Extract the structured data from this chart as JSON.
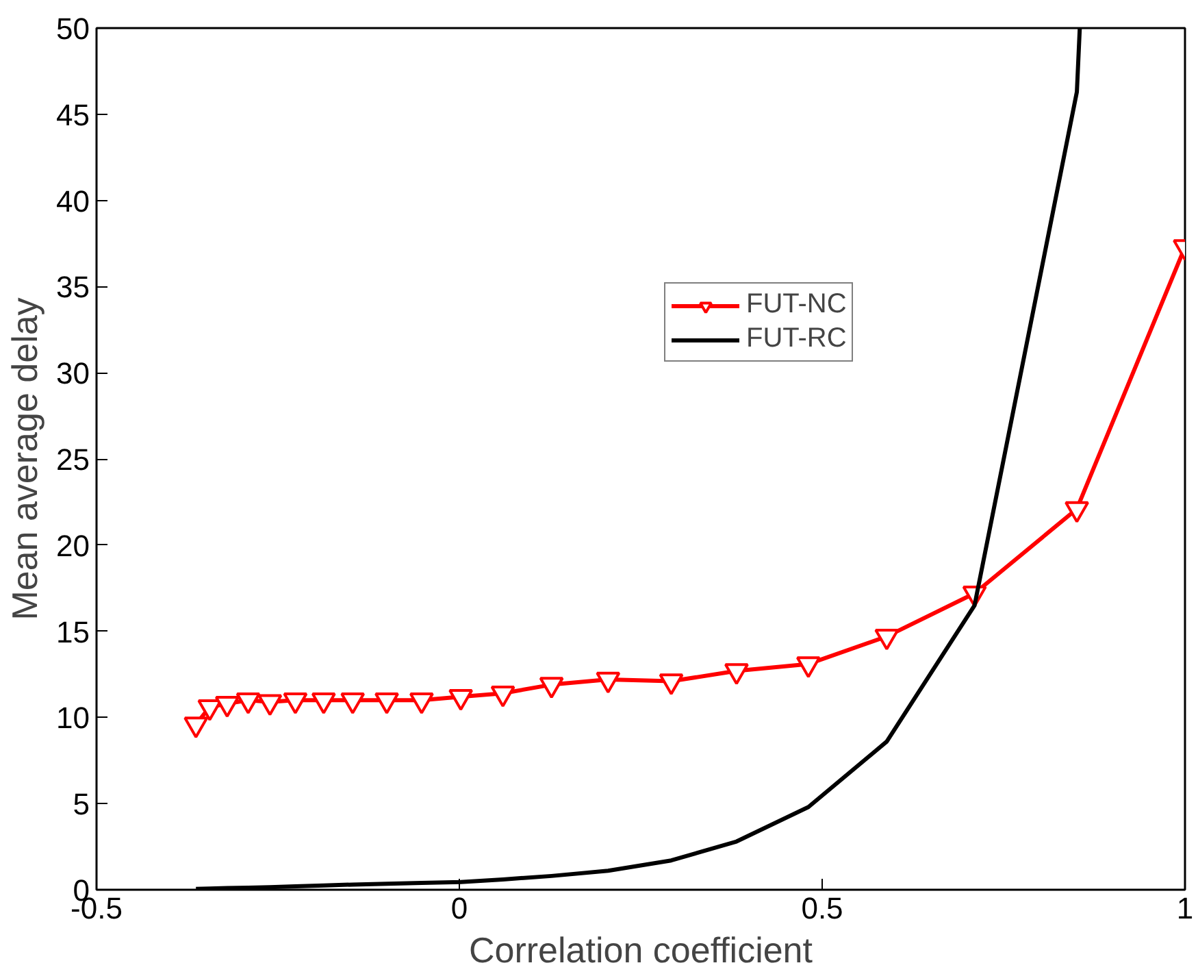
{
  "chart_data": {
    "type": "line",
    "xlabel": "Correlation coefficient",
    "ylabel": "Mean average delay",
    "xlim": [
      -0.5,
      1
    ],
    "ylim": [
      0,
      50
    ],
    "xticks": [
      -0.5,
      0,
      0.5,
      1
    ],
    "yticks": [
      0,
      5,
      10,
      15,
      20,
      25,
      30,
      35,
      40,
      45,
      50
    ],
    "grid": false,
    "legend": "top right",
    "line_style": "solid",
    "series": [
      {
        "name": "FUT-NC",
        "color": "#ff0000",
        "marker": "triangle",
        "x": [
          -0.363,
          -0.344,
          -0.32,
          -0.291,
          -0.261,
          -0.226,
          -0.187,
          -0.147,
          -0.1,
          -0.052,
          0.002,
          0.06,
          0.127,
          0.205,
          0.292,
          0.382,
          0.481,
          0.589,
          0.71,
          0.851,
          1.0
        ],
        "values": [
          9.6,
          10.6,
          10.8,
          11,
          10.9,
          11,
          11,
          11,
          11,
          11,
          11.2,
          11.4,
          11.9,
          12.2,
          12.1,
          12.7,
          13.1,
          14.7,
          17.2,
          22.1,
          37.3
        ]
      },
      {
        "name": "FUT-RC",
        "color": "#000000",
        "marker": "none",
        "x": [
          -0.363,
          -0.344,
          -0.32,
          -0.291,
          -0.261,
          -0.226,
          -0.187,
          -0.147,
          -0.1,
          -0.052,
          0.002,
          0.06,
          0.127,
          0.205,
          0.292,
          0.382,
          0.481,
          0.589,
          0.71,
          0.851,
          0.855
        ],
        "values": [
          0.05,
          0.07,
          0.1,
          0.12,
          0.15,
          0.2,
          0.25,
          0.3,
          0.35,
          0.4,
          0.45,
          0.6,
          0.8,
          1.1,
          1.7,
          2.8,
          4.8,
          8.6,
          16.5,
          46.3,
          50
        ]
      }
    ]
  }
}
